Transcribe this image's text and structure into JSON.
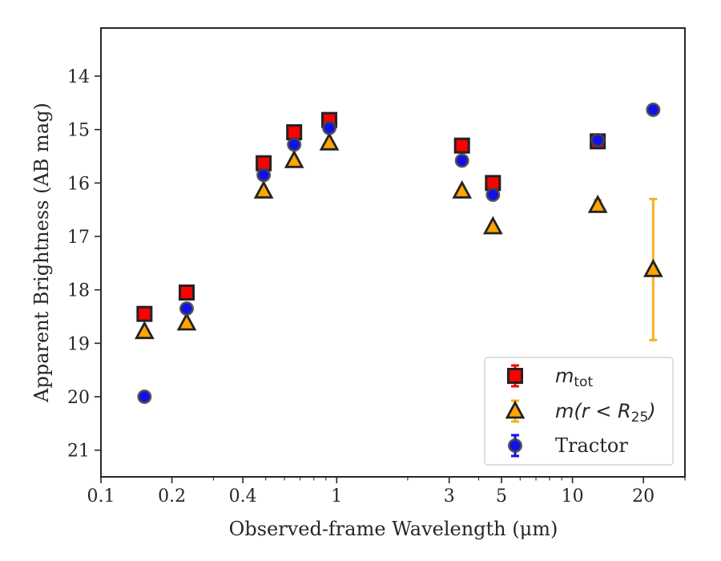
{
  "chart_data": {
    "type": "scatter",
    "title": "",
    "xlabel": "Observed-frame Wavelength (μm)",
    "ylabel": "Apparent Brightness (AB mag)",
    "xscale": "log",
    "xlim": [
      0.1,
      30
    ],
    "ylim": [
      21.5,
      13.1
    ],
    "y_inverted": true,
    "x_ticks": [
      0.1,
      0.2,
      0.4,
      1,
      3,
      5,
      10,
      20
    ],
    "x_tick_labels": [
      "0.1",
      "0.2",
      "0.4",
      "1",
      "3",
      "5",
      "10",
      "20"
    ],
    "y_ticks": [
      14,
      15,
      16,
      17,
      18,
      19,
      20,
      21
    ],
    "y_tick_labels": [
      "14",
      "15",
      "16",
      "17",
      "18",
      "19",
      "20",
      "21"
    ],
    "grid": false,
    "legend_position": "bottom-right",
    "series": [
      {
        "name": "m_tot",
        "legend_main": "m",
        "legend_sub": "tot",
        "marker": "square",
        "color": "#ff0000",
        "edge_color": "#222222",
        "x": [
          0.153,
          0.231,
          0.49,
          0.66,
          0.93,
          3.4,
          4.6,
          12.8
        ],
        "y": [
          18.45,
          18.05,
          15.63,
          15.05,
          14.82,
          15.3,
          16.0,
          15.22
        ]
      },
      {
        "name": "m(r < R_25)",
        "legend_main": "m(r < R",
        "legend_sub": "25",
        "legend_end": ")",
        "marker": "triangle",
        "color": "#ffa500",
        "edge_color": "#222222",
        "error_color": "#f5b021",
        "x": [
          0.153,
          0.231,
          0.49,
          0.66,
          0.93,
          3.4,
          4.6,
          12.8,
          22.0
        ],
        "y": [
          18.78,
          18.62,
          16.15,
          15.58,
          15.25,
          16.15,
          16.82,
          16.42,
          17.62
        ],
        "yerr": [
          0,
          0,
          0,
          0,
          0,
          0,
          0,
          0.1,
          1.32
        ]
      },
      {
        "name": "Tractor",
        "legend_main": "Tractor",
        "marker": "circle",
        "color": "#1010ee",
        "edge_color": "#444444",
        "x": [
          0.153,
          0.231,
          0.49,
          0.66,
          0.93,
          3.4,
          4.6,
          12.8,
          22.0
        ],
        "y": [
          20.0,
          18.35,
          15.85,
          15.28,
          14.97,
          15.58,
          16.22,
          15.2,
          14.63
        ]
      }
    ]
  }
}
